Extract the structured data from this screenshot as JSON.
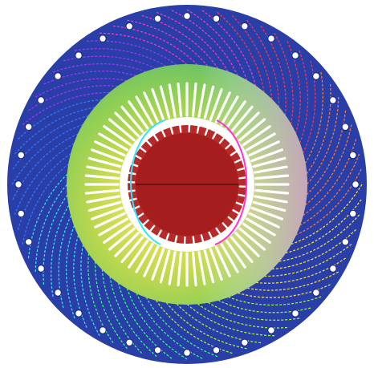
{
  "figure": {
    "kind": "electric machine cross-section with flux / field-line overlay",
    "text_labels": []
  },
  "components": {
    "frame_plate": {
      "color": "#2a3ea8",
      "bolt_holes": 36
    },
    "stator": {
      "slots": 72,
      "field_gradient": [
        "#9ad24a",
        "#d4dc5a",
        "#f0c870",
        "#e7a5d0"
      ]
    },
    "air_gap": {
      "color": "#ffffff"
    },
    "rotor": {
      "slots": 40,
      "core_color": "#a61d1d",
      "tooth_color": "#b62a2a"
    }
  },
  "field_lines": {
    "count": 72,
    "colors": [
      "#ff3355",
      "#ff7a33",
      "#ffe233",
      "#9cff33",
      "#33ff88",
      "#33e6ff",
      "#3377ff",
      "#a633ff",
      "#ff33d0"
    ]
  }
}
